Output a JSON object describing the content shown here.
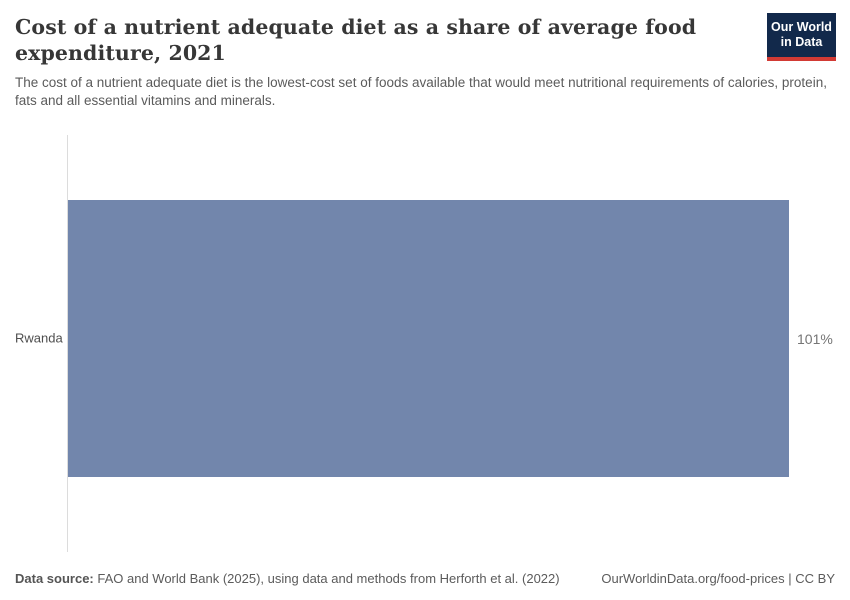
{
  "header": {
    "title": "Cost of a nutrient adequate diet as a share of average food expenditure, 2021",
    "subtitle": "The cost of a nutrient adequate diet is the lowest-cost set of foods available that would meet nutritional requirements of calories, protein, fats and all essential vitamins and minerals.",
    "logo": {
      "line1": "Our World",
      "line2": "in Data",
      "bg_color": "#12294b",
      "accent_color": "#d23a34"
    }
  },
  "chart_data": {
    "type": "bar",
    "orientation": "horizontal",
    "title": "Cost of a nutrient adequate diet as a share of average food expenditure, 2021",
    "categories": [
      "Rwanda"
    ],
    "values": [
      101
    ],
    "value_labels": [
      "101%"
    ],
    "unit": "%",
    "xlim": [
      0,
      101
    ],
    "bar_color": "#7286ac",
    "axis_line_color": "#dcdcdc",
    "grid": false,
    "legend": "none"
  },
  "footer": {
    "source_label": "Data source:",
    "source_text": " FAO and World Bank (2025), using data and methods from Herforth et al. (2022)",
    "license_text": "OurWorldinData.org/food-prices | CC BY"
  }
}
